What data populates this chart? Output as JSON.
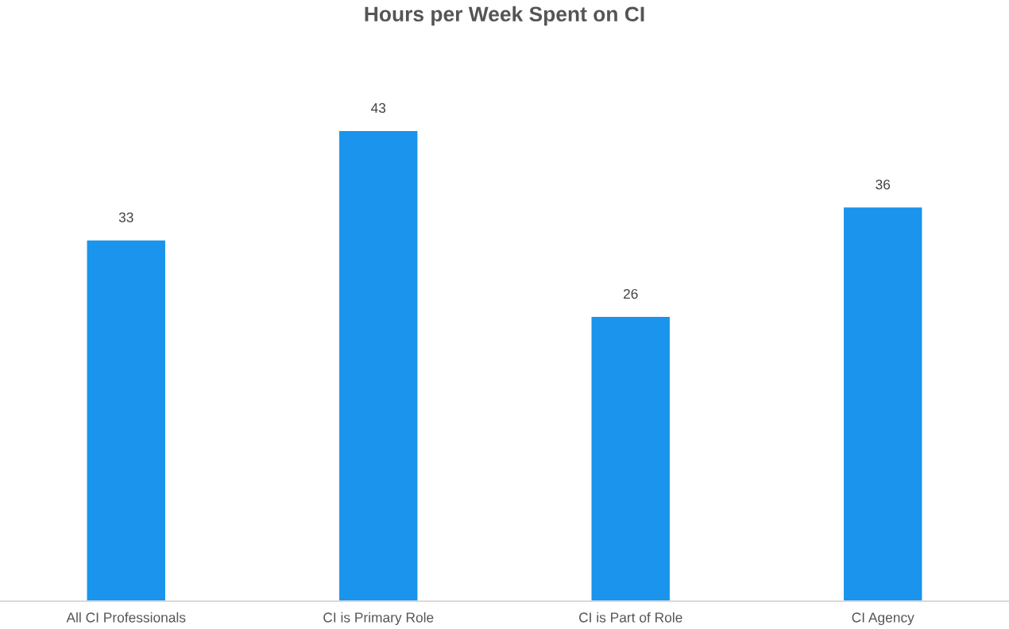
{
  "chart_data": {
    "type": "bar",
    "title": "Hours per Week Spent on CI",
    "categories": [
      "All CI Professionals",
      "CI is Primary Role",
      "CI is Part of Role",
      "CI Agency"
    ],
    "values": [
      33,
      43,
      26,
      36
    ],
    "color": "#1a94ec",
    "data_labels": true
  }
}
